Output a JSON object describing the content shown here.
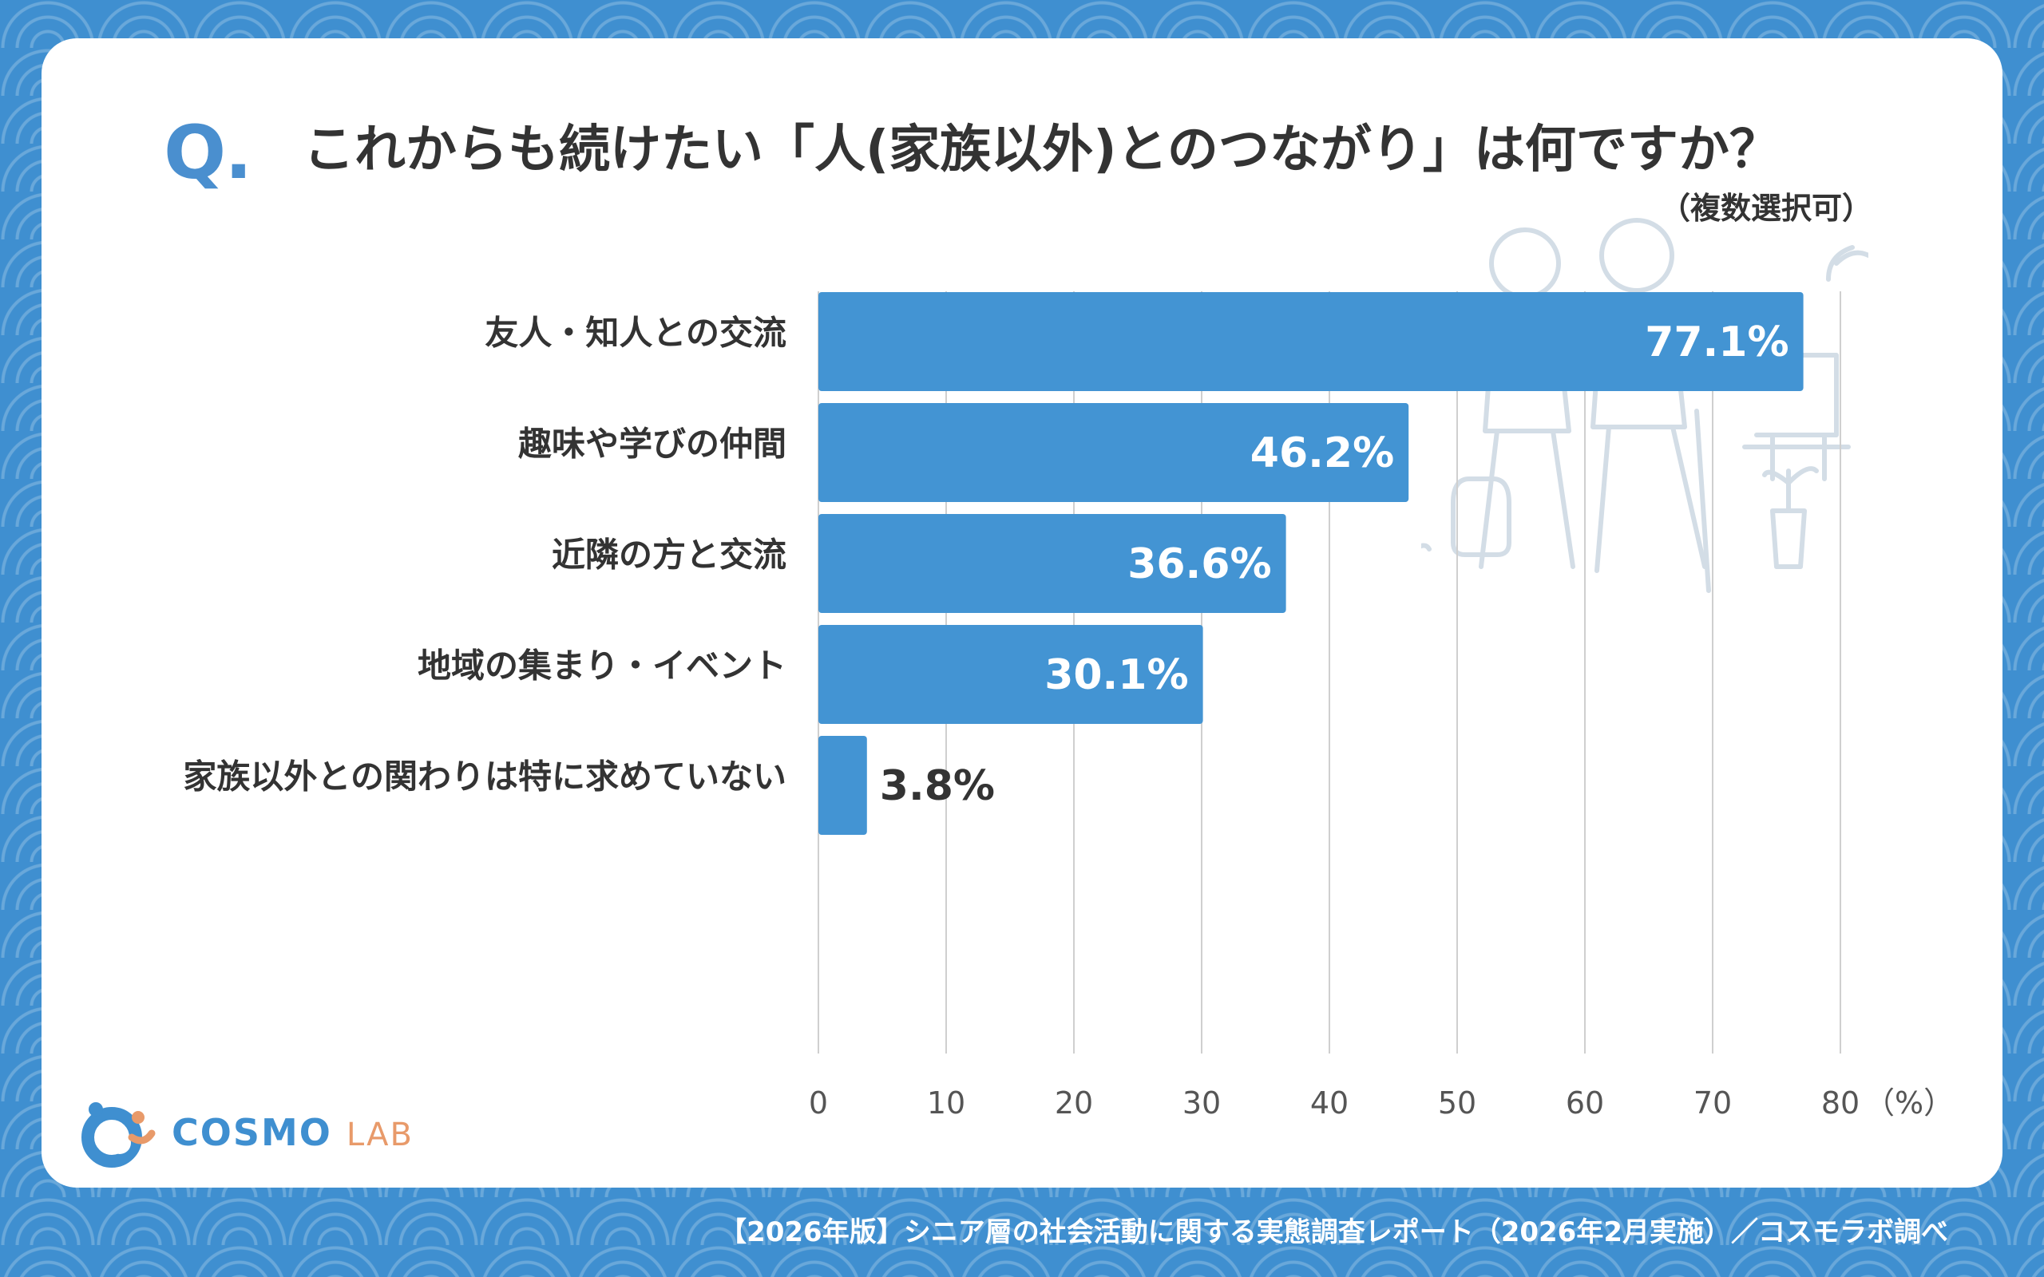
{
  "header": {
    "q_mark": "Q.",
    "title": "これからも続けたい「人(家族以外)とのつながり」は何ですか？",
    "subtitle": "（複数選択可）"
  },
  "chart_data": {
    "type": "bar",
    "orientation": "horizontal",
    "categories": [
      "友人・知人との交流",
      "趣味や学びの仲間",
      "近隣の方と交流",
      "地域の集まり・イベント",
      "家族以外との関わりは特に求めていない"
    ],
    "values": [
      77.1,
      46.2,
      36.6,
      30.1,
      3.8
    ],
    "value_labels": [
      "77.1%",
      "46.2%",
      "36.6%",
      "30.1%",
      "3.8%"
    ],
    "xlim": [
      0,
      80
    ],
    "xticks": [
      0,
      10,
      20,
      30,
      40,
      50,
      60,
      70,
      80
    ],
    "x_unit": "（%）",
    "bar_color": "#4394d3",
    "grid": true
  },
  "logo": {
    "part1": "COSMO",
    "part2": "LAB"
  },
  "footer": "【2026年版】シニア層の社会活動に関する実態調査レポート（2026年2月実施）／コスモラボ調べ"
}
